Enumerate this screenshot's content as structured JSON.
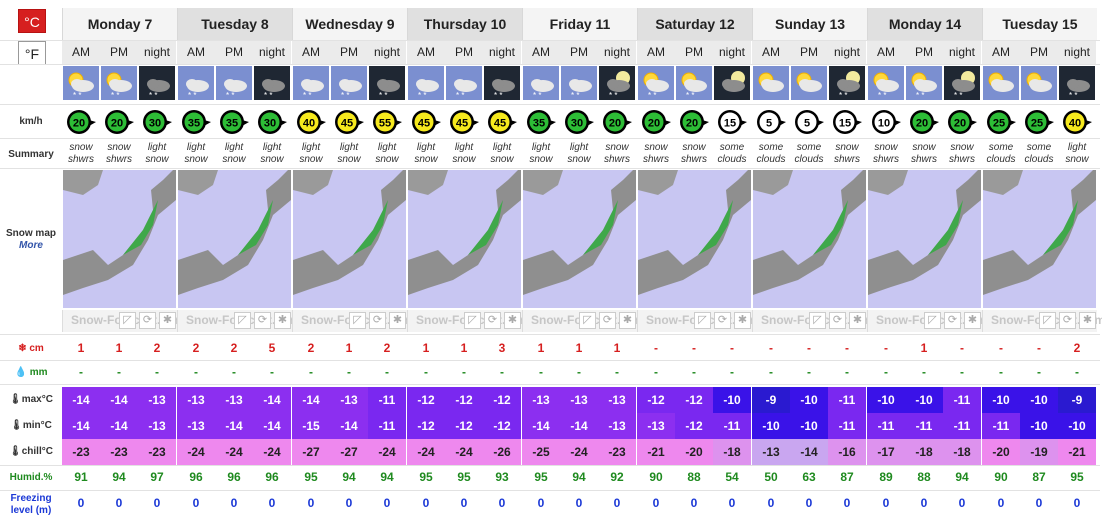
{
  "units": {
    "celsius": "°C",
    "fahrenheit": "°F"
  },
  "labels": {
    "wind": "km/h",
    "summary": "Summary",
    "snowmap": "Snow map",
    "more": "More",
    "snow": "cm",
    "rain": "mm",
    "max": "max°C",
    "min": "min°C",
    "chill": "chill°C",
    "humid": "Humid.%",
    "freezing": "Freezing level (m)"
  },
  "brand": "Snow-Forecast.com",
  "colors": {
    "unit_c_bg": "#d61f1f",
    "snow_red": "#d61f1f",
    "rain_green": "#1f8a1f",
    "freezing_blue": "#1b38d6"
  },
  "periods": [
    "AM",
    "PM",
    "night"
  ],
  "days": [
    {
      "name": "Monday 7",
      "icons": [
        "partly-cloudy-snow-icon",
        "partly-cloudy-snow-icon",
        "night-snow-icon"
      ],
      "wind": [
        20,
        20,
        30
      ],
      "summary": [
        [
          "snow",
          "shwrs"
        ],
        [
          "snow",
          "shwrs"
        ],
        [
          "light",
          "snow"
        ]
      ],
      "snow": [
        "1",
        "1",
        "2"
      ],
      "rain": [
        "-",
        "-",
        "-"
      ],
      "max": [
        -14,
        -14,
        -13
      ],
      "min": [
        -14,
        -14,
        -13
      ],
      "chill": [
        -23,
        -23,
        -23
      ],
      "humid": [
        91,
        94,
        97
      ],
      "freezing": [
        0,
        0,
        0
      ]
    },
    {
      "name": "Tuesday 8",
      "icons": [
        "cloudy-snow-icon",
        "cloudy-snow-icon",
        "night-snow-icon"
      ],
      "wind": [
        35,
        35,
        30
      ],
      "summary": [
        [
          "light",
          "snow"
        ],
        [
          "light",
          "snow"
        ],
        [
          "light",
          "snow"
        ]
      ],
      "snow": [
        "2",
        "2",
        "5"
      ],
      "rain": [
        "-",
        "-",
        "-"
      ],
      "max": [
        -13,
        -13,
        -14
      ],
      "min": [
        -13,
        -14,
        -14
      ],
      "chill": [
        -24,
        -24,
        -24
      ],
      "humid": [
        96,
        96,
        96
      ],
      "freezing": [
        0,
        0,
        0
      ]
    },
    {
      "name": "Wednesday 9",
      "icons": [
        "cloudy-snow-icon",
        "cloudy-snow-icon",
        "night-snow-icon"
      ],
      "wind": [
        40,
        45,
        55
      ],
      "summary": [
        [
          "light",
          "snow"
        ],
        [
          "light",
          "snow"
        ],
        [
          "light",
          "snow"
        ]
      ],
      "snow": [
        "2",
        "1",
        "2"
      ],
      "rain": [
        "-",
        "-",
        "-"
      ],
      "max": [
        -14,
        -13,
        -11
      ],
      "min": [
        -15,
        -14,
        -11
      ],
      "chill": [
        -27,
        -27,
        -24
      ],
      "humid": [
        95,
        94,
        94
      ],
      "freezing": [
        0,
        0,
        0
      ]
    },
    {
      "name": "Thursday 10",
      "icons": [
        "cloudy-snow-icon",
        "cloudy-snow-icon",
        "night-snow-icon"
      ],
      "wind": [
        45,
        45,
        45
      ],
      "summary": [
        [
          "light",
          "snow"
        ],
        [
          "light",
          "snow"
        ],
        [
          "light",
          "snow"
        ]
      ],
      "snow": [
        "1",
        "1",
        "3"
      ],
      "rain": [
        "-",
        "-",
        "-"
      ],
      "max": [
        -12,
        -12,
        -12
      ],
      "min": [
        -12,
        -12,
        -12
      ],
      "chill": [
        -24,
        -24,
        -26
      ],
      "humid": [
        95,
        95,
        93
      ],
      "freezing": [
        0,
        0,
        0
      ]
    },
    {
      "name": "Friday 11",
      "icons": [
        "cloudy-snow-icon",
        "cloudy-snow-icon",
        "night-moon-snow-icon"
      ],
      "wind": [
        35,
        30,
        20
      ],
      "summary": [
        [
          "light",
          "snow"
        ],
        [
          "light",
          "snow"
        ],
        [
          "snow",
          "shwrs"
        ]
      ],
      "snow": [
        "1",
        "1",
        "1"
      ],
      "rain": [
        "-",
        "-",
        "-"
      ],
      "max": [
        -13,
        -13,
        -13
      ],
      "min": [
        -14,
        -14,
        -13
      ],
      "chill": [
        -25,
        -24,
        -23
      ],
      "humid": [
        95,
        94,
        92
      ],
      "freezing": [
        0,
        0,
        0
      ]
    },
    {
      "name": "Saturday 12",
      "icons": [
        "partly-cloudy-snow-icon",
        "partly-cloudy-snow-icon",
        "night-moon-cloud-icon"
      ],
      "wind": [
        20,
        20,
        15
      ],
      "summary": [
        [
          "snow",
          "shwrs"
        ],
        [
          "snow",
          "shwrs"
        ],
        [
          "some",
          "clouds"
        ]
      ],
      "snow": [
        "-",
        "-",
        "-"
      ],
      "rain": [
        "-",
        "-",
        "-"
      ],
      "max": [
        -12,
        -12,
        -10
      ],
      "min": [
        -13,
        -12,
        -11
      ],
      "chill": [
        -21,
        -20,
        -18
      ],
      "humid": [
        90,
        88,
        54
      ],
      "freezing": [
        0,
        0,
        0
      ]
    },
    {
      "name": "Sunday 13",
      "icons": [
        "sun-cloud-icon",
        "sun-cloud-icon",
        "night-moon-snow-icon"
      ],
      "wind": [
        5,
        5,
        15
      ],
      "summary": [
        [
          "some",
          "clouds"
        ],
        [
          "some",
          "clouds"
        ],
        [
          "snow",
          "shwrs"
        ]
      ],
      "snow": [
        "-",
        "-",
        "-"
      ],
      "rain": [
        "-",
        "-",
        "-"
      ],
      "max": [
        -9,
        -10,
        -11
      ],
      "min": [
        -10,
        -10,
        -11
      ],
      "chill": [
        -13,
        -14,
        -16
      ],
      "humid": [
        50,
        63,
        87
      ],
      "freezing": [
        0,
        0,
        0
      ]
    },
    {
      "name": "Monday 14",
      "icons": [
        "partly-cloudy-snow-icon",
        "partly-cloudy-snow-icon",
        "night-moon-snow-icon"
      ],
      "wind": [
        10,
        20,
        20
      ],
      "summary": [
        [
          "snow",
          "shwrs"
        ],
        [
          "snow",
          "shwrs"
        ],
        [
          "snow",
          "shwrs"
        ]
      ],
      "snow": [
        "-",
        "1",
        "-"
      ],
      "rain": [
        "-",
        "-",
        "-"
      ],
      "max": [
        -10,
        -10,
        -11
      ],
      "min": [
        -11,
        -11,
        -11
      ],
      "chill": [
        -17,
        -18,
        -18
      ],
      "humid": [
        89,
        88,
        94
      ],
      "freezing": [
        0,
        0,
        0
      ]
    },
    {
      "name": "Tuesday 15",
      "icons": [
        "sun-cloud-icon",
        "sun-cloud-icon",
        "night-snow-icon"
      ],
      "wind": [
        25,
        25,
        40
      ],
      "summary": [
        [
          "some",
          "clouds"
        ],
        [
          "some",
          "clouds"
        ],
        [
          "light",
          "snow"
        ]
      ],
      "snow": [
        "-",
        "-",
        "2"
      ],
      "rain": [
        "-",
        "-",
        "-"
      ],
      "max": [
        -10,
        -10,
        -9
      ],
      "min": [
        -11,
        -10,
        -10
      ],
      "chill": [
        -20,
        -19,
        -21
      ],
      "humid": [
        90,
        87,
        95
      ],
      "freezing": [
        0,
        0,
        0
      ]
    }
  ]
}
